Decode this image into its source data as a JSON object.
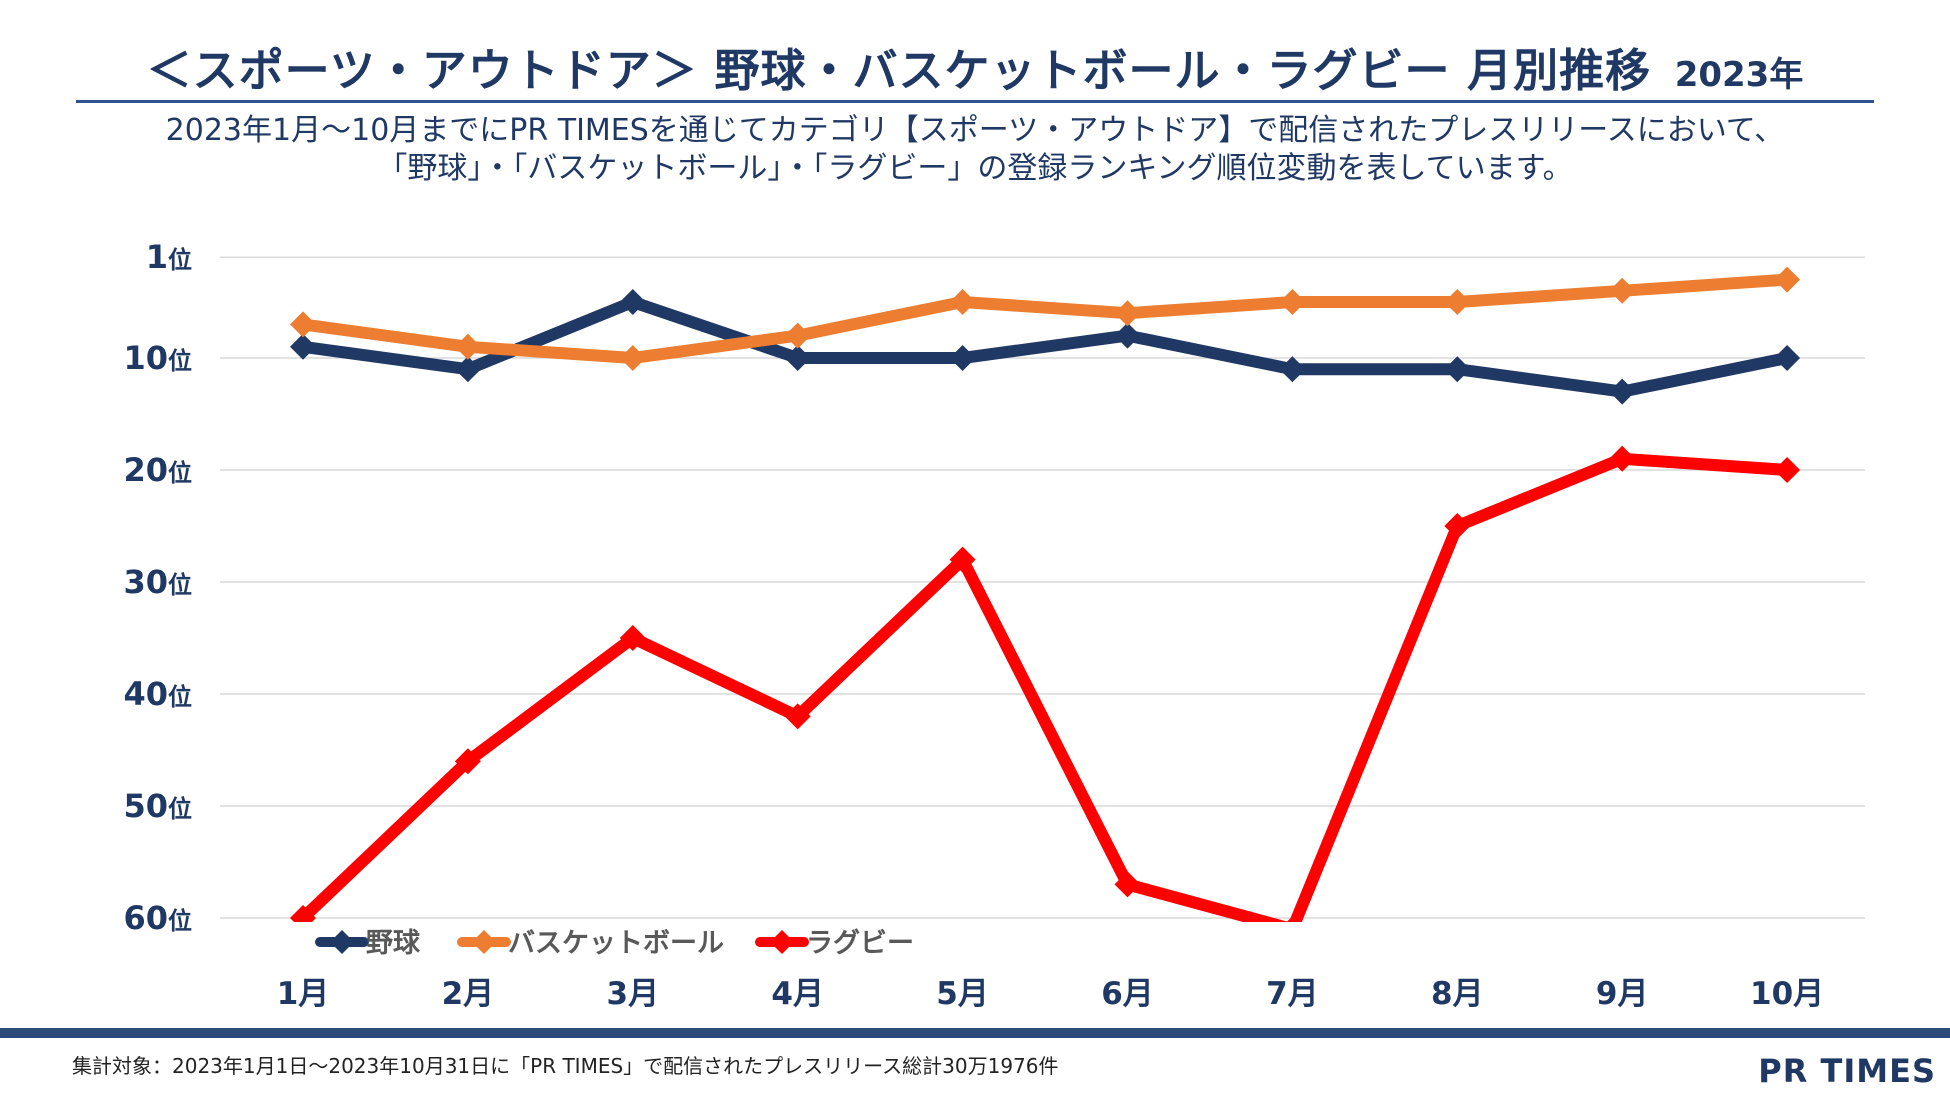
{
  "header": {
    "title": "＜スポーツ・アウトドア＞ 野球・バスケットボール・ラグビー 月別推移",
    "year": "2023年",
    "subtitle_line1": "2023年1月〜10月までにPR TIMESを通じてカテゴリ【スポーツ・アウトドア】で配信されたプレスリリースにおいて、",
    "subtitle_line2": "「野球」・「バスケットボール」・「ラグビー」の登録ランキング順位変動を表しています。"
  },
  "chart_data": {
    "type": "line",
    "title": "＜スポーツ・アウトドア＞ 野球・バスケットボール・ラグビー 月別推移",
    "categories": [
      "1月",
      "2月",
      "3月",
      "4月",
      "5月",
      "6月",
      "7月",
      "8月",
      "9月",
      "10月"
    ],
    "y_axis": {
      "inverted": true,
      "ylim": [
        1,
        61
      ],
      "ticks": [
        1,
        10,
        20,
        30,
        40,
        50,
        60
      ],
      "tick_labels": [
        "1位",
        "10位",
        "20位",
        "30位",
        "40位",
        "50位",
        "60位"
      ]
    },
    "grid": true,
    "legend_position": "bottom-left",
    "series": [
      {
        "name": "野球",
        "color": "#203864",
        "values": [
          9,
          11,
          5,
          10,
          10,
          8,
          11,
          11,
          13,
          10
        ]
      },
      {
        "name": "バスケットボール",
        "color": "#ed7d31",
        "values": [
          7,
          9,
          10,
          8,
          5,
          6,
          5,
          5,
          4,
          3
        ]
      },
      {
        "name": "ラグビー",
        "color": "#ff0000",
        "values": [
          60,
          46,
          35,
          42,
          28,
          57,
          61,
          25,
          19,
          20
        ]
      }
    ]
  },
  "footer": {
    "note": "集計対象：2023年1月1日〜2023年10月31日に「PR TIMES」で配信されたプレスリリース総計30万1976件",
    "brand": "PR TIMES"
  }
}
